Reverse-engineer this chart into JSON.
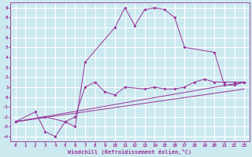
{
  "bg_color": "#cce9f0",
  "line_color": "#993399",
  "grid_color": "#ffffff",
  "xlabel": "Windchill (Refroidissement éolien,°C)",
  "xlim": [
    -0.5,
    23.5
  ],
  "ylim": [
    -4.5,
    9.5
  ],
  "xtick_labels": [
    "0",
    "1",
    "2",
    "3",
    "4",
    "5",
    "6",
    "7",
    "8",
    "9",
    "10",
    "11",
    "12",
    "13",
    "14",
    "15",
    "16",
    "17",
    "18",
    "19",
    "20",
    "21",
    "22",
    "23"
  ],
  "xtick_vals": [
    0,
    1,
    2,
    3,
    4,
    5,
    6,
    7,
    8,
    9,
    10,
    11,
    12,
    13,
    14,
    15,
    16,
    17,
    18,
    19,
    20,
    21,
    22,
    23
  ],
  "ytick_labels": [
    "-4",
    "-3",
    "-2",
    "-1",
    "0",
    "1",
    "2",
    "3",
    "4",
    "5",
    "6",
    "7",
    "8",
    "9"
  ],
  "ytick_vals": [
    -4,
    -3,
    -2,
    -1,
    0,
    1,
    2,
    3,
    4,
    5,
    6,
    7,
    8,
    9
  ],
  "line1_x": [
    0,
    2,
    3,
    4,
    5,
    6,
    7,
    10,
    11,
    12,
    13,
    14,
    15,
    16,
    17,
    20,
    21,
    22,
    23
  ],
  "line1_y": [
    -2.5,
    -1.5,
    -3.5,
    -4.0,
    -2.5,
    -3.0,
    3.5,
    7.0,
    9.0,
    7.2,
    8.8,
    9.0,
    8.8,
    8.0,
    5.0,
    4.5,
    1.2,
    1.2,
    1.5
  ],
  "line2_x": [
    0,
    3,
    5,
    6,
    7,
    8,
    9,
    10,
    11,
    13,
    14,
    15,
    16,
    17,
    18,
    19,
    20,
    21,
    22,
    23
  ],
  "line2_y": [
    -2.5,
    -2.0,
    -2.5,
    -2.0,
    1.0,
    1.5,
    0.5,
    0.2,
    1.0,
    0.8,
    1.0,
    0.8,
    0.8,
    1.0,
    1.5,
    1.8,
    1.5,
    1.5,
    1.5,
    1.5
  ],
  "line3_x": [
    0,
    23
  ],
  "line3_y": [
    -2.5,
    1.5
  ],
  "line4_x": [
    0,
    23
  ],
  "line4_y": [
    -2.5,
    0.8
  ]
}
